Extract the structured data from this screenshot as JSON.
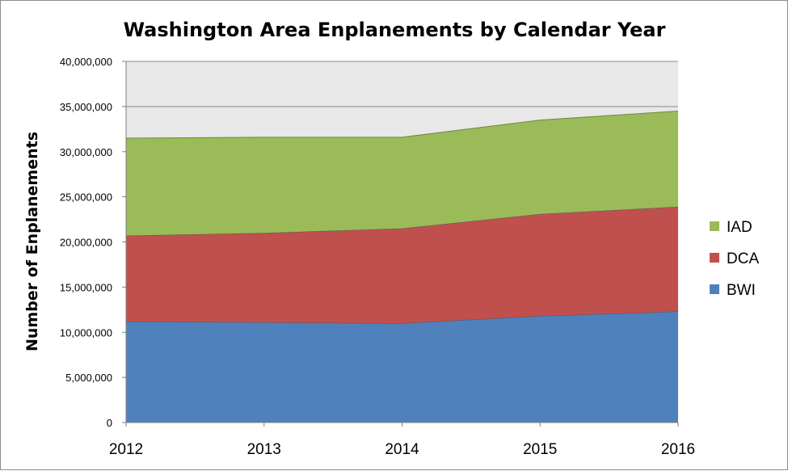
{
  "chart_data": {
    "type": "area",
    "stacked": true,
    "title": "Washington Area Enplanements by Calendar Year",
    "xlabel": "",
    "ylabel": "Number of Enplanements",
    "x": [
      "2012",
      "2013",
      "2014",
      "2015",
      "2016"
    ],
    "ylim": [
      0,
      40000000
    ],
    "yticks": [
      0,
      5000000,
      10000000,
      15000000,
      20000000,
      25000000,
      30000000,
      35000000,
      40000000
    ],
    "ytick_labels": [
      "0",
      "5,000,000",
      "10,000,000",
      "15,000,000",
      "20,000,000",
      "25,000,000",
      "30,000,000",
      "35,000,000",
      "40,000,000"
    ],
    "grid": true,
    "plot_background": "#e8e8e8",
    "legend_position": "right",
    "series": [
      {
        "name": "BWI",
        "color": "#4f81bd",
        "values": [
          11200000,
          11100000,
          11000000,
          11800000,
          12300000
        ]
      },
      {
        "name": "DCA",
        "color": "#c0504d",
        "values": [
          9500000,
          9900000,
          10500000,
          11300000,
          11600000
        ]
      },
      {
        "name": "IAD",
        "color": "#9bbb59",
        "values": [
          10800000,
          10600000,
          10100000,
          10400000,
          10600000
        ]
      }
    ],
    "legend_order": [
      "IAD",
      "DCA",
      "BWI"
    ]
  }
}
